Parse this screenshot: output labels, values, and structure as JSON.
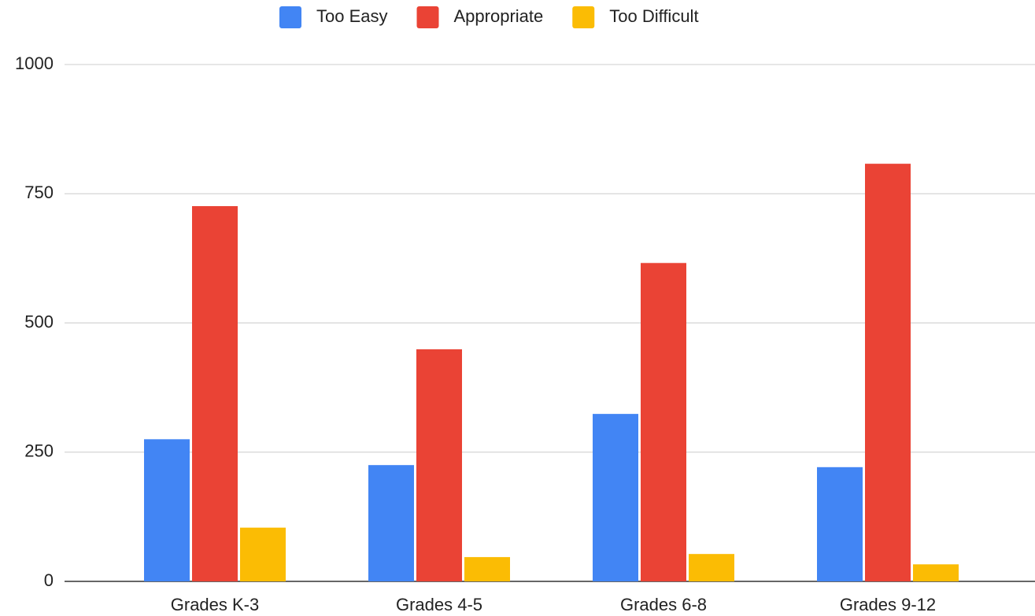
{
  "chart_data": {
    "type": "bar",
    "categories": [
      "Grades K-3",
      "Grades 4-5",
      "Grades 6-8",
      "Grades 9-12"
    ],
    "series": [
      {
        "name": "Too Easy",
        "color": "#4285f4",
        "values": [
          275,
          225,
          324,
          221
        ]
      },
      {
        "name": "Appropriate",
        "color": "#ea4335",
        "values": [
          726,
          449,
          616,
          808
        ]
      },
      {
        "name": "Too Difficult",
        "color": "#fbbc04",
        "values": [
          104,
          47,
          53,
          33
        ]
      }
    ],
    "ylim": [
      0,
      1000
    ],
    "yticks": [
      0,
      250,
      500,
      750,
      1000
    ],
    "grid": true,
    "legend": "top"
  }
}
